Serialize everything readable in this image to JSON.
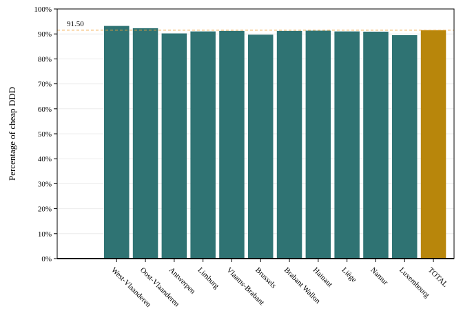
{
  "chart_data": {
    "type": "bar",
    "title": "",
    "xlabel": "",
    "ylabel": "Percentage of cheap DDD",
    "ylim": [
      0,
      100
    ],
    "y_ticks": [
      "0%",
      "10%",
      "20%",
      "30%",
      "40%",
      "50%",
      "60%",
      "70%",
      "80%",
      "90%",
      "100%"
    ],
    "grid": true,
    "categories": [
      "West-Vlaanderen",
      "Oost-Vlaanderen",
      "Antwerpen",
      "Limburg",
      "Vlaams-Brabant",
      "Brussels",
      "Brabant Wallon",
      "Hainaut",
      "Liège",
      "Namur",
      "Luxembourg",
      "TOTAL"
    ],
    "values": [
      93.2,
      92.3,
      90.2,
      91.0,
      91.2,
      89.7,
      91.2,
      91.3,
      91.0,
      90.9,
      89.5,
      91.5
    ],
    "reference_line": {
      "value": 91.5,
      "label": "91.50",
      "color": "#f2a33a",
      "style": "dashed"
    },
    "colors": {
      "region": "#2f7373",
      "total": "#b8860b",
      "axis": "#000000",
      "grid": "#ececec"
    }
  }
}
